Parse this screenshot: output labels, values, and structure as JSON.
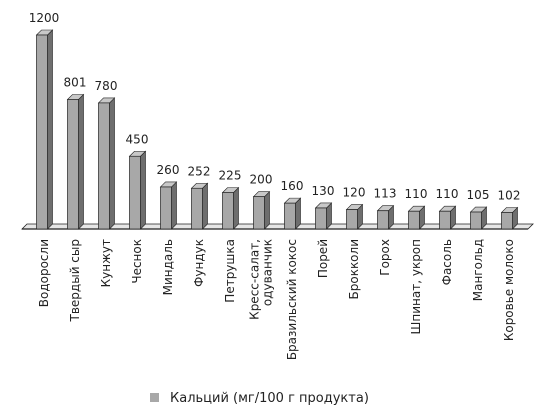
{
  "chart_data": {
    "type": "bar",
    "title": "",
    "xlabel": "",
    "ylabel": "",
    "ylim": [
      0,
      1200
    ],
    "grid": false,
    "legend_position": "bottom-center",
    "bar_color": "#a8a8a8",
    "bar_edge_color": "#222222",
    "categories": [
      "Водоросли",
      "Твердый сыр",
      "Кунжут",
      "Чеснок",
      "Миндаль",
      "Фундук",
      "Петрушка",
      "Кресс-салат,\nодуванчик",
      "Бразильский кокос",
      "Порей",
      "Брокколи",
      "Горох",
      "Шпинат, укроп",
      "Фасоль",
      "Мангольд",
      "Коровье молоко"
    ],
    "series": [
      {
        "name": "Кальций (мг/100 г продукта)",
        "values": [
          1200,
          801,
          780,
          450,
          260,
          252,
          225,
          200,
          160,
          130,
          120,
          113,
          110,
          110,
          105,
          102
        ]
      }
    ]
  }
}
